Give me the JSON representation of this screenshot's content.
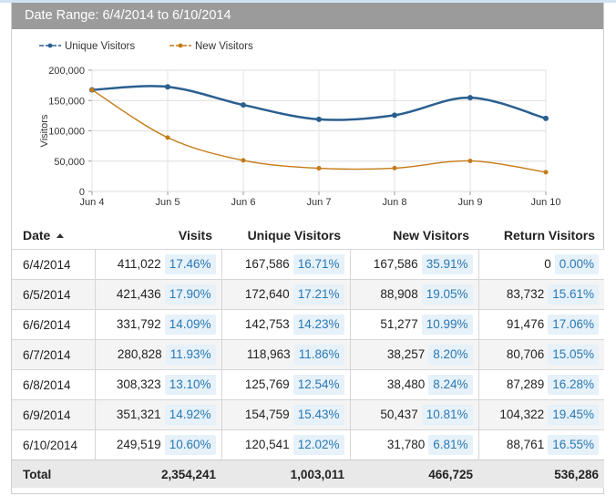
{
  "header": {
    "title": "Date Range: 6/4/2014 to 6/10/2014"
  },
  "chart_data": {
    "type": "line",
    "title": "",
    "xlabel": "",
    "ylabel": "Visitors",
    "categories": [
      "Jun 4",
      "Jun 5",
      "Jun 6",
      "Jun 7",
      "Jun 8",
      "Jun 9",
      "Jun 10"
    ],
    "ylim": [
      0,
      200000
    ],
    "yticks": [
      0,
      50000,
      100000,
      150000,
      200000
    ],
    "ytick_labels": [
      "0",
      "50,000",
      "100,000",
      "150,000",
      "200,000"
    ],
    "grid": true,
    "legend_position": "top-left",
    "series": [
      {
        "name": "Unique Visitors",
        "color": "#2a5f8f",
        "smooth": true,
        "values": [
          167586,
          172640,
          142753,
          118963,
          125769,
          154759,
          120541
        ]
      },
      {
        "name": "New Visitors",
        "color": "#c57a16",
        "smooth": false,
        "values": [
          167586,
          88908,
          51277,
          38257,
          38480,
          50437,
          31780
        ]
      }
    ]
  },
  "table": {
    "columns": [
      {
        "label": "Date",
        "sorted": "ascending"
      },
      {
        "label": "Visits"
      },
      {
        "label": "Unique Visitors"
      },
      {
        "label": "New Visitors"
      },
      {
        "label": "Return Visitors"
      }
    ],
    "rows": [
      {
        "date": "6/4/2014",
        "visits": "411,022",
        "visits_pct": "17.46%",
        "unique": "167,586",
        "unique_pct": "16.71%",
        "new": "167,586",
        "new_pct": "35.91%",
        "return": "0",
        "return_pct": "0.00%"
      },
      {
        "date": "6/5/2014",
        "visits": "421,436",
        "visits_pct": "17.90%",
        "unique": "172,640",
        "unique_pct": "17.21%",
        "new": "88,908",
        "new_pct": "19.05%",
        "return": "83,732",
        "return_pct": "15.61%"
      },
      {
        "date": "6/6/2014",
        "visits": "331,792",
        "visits_pct": "14.09%",
        "unique": "142,753",
        "unique_pct": "14.23%",
        "new": "51,277",
        "new_pct": "10.99%",
        "return": "91,476",
        "return_pct": "17.06%"
      },
      {
        "date": "6/7/2014",
        "visits": "280,828",
        "visits_pct": "11.93%",
        "unique": "118,963",
        "unique_pct": "11.86%",
        "new": "38,257",
        "new_pct": "8.20%",
        "return": "80,706",
        "return_pct": "15.05%"
      },
      {
        "date": "6/8/2014",
        "visits": "308,323",
        "visits_pct": "13.10%",
        "unique": "125,769",
        "unique_pct": "12.54%",
        "new": "38,480",
        "new_pct": "8.24%",
        "return": "87,289",
        "return_pct": "16.28%"
      },
      {
        "date": "6/9/2014",
        "visits": "351,321",
        "visits_pct": "14.92%",
        "unique": "154,759",
        "unique_pct": "15.43%",
        "new": "50,437",
        "new_pct": "10.81%",
        "return": "104,322",
        "return_pct": "19.45%"
      },
      {
        "date": "6/10/2014",
        "visits": "249,519",
        "visits_pct": "10.60%",
        "unique": "120,541",
        "unique_pct": "12.02%",
        "new": "31,780",
        "new_pct": "6.81%",
        "return": "88,761",
        "return_pct": "16.55%"
      }
    ],
    "total": {
      "label": "Total",
      "visits": "2,354,241",
      "unique": "1,003,011",
      "new": "466,725",
      "return": "536,286"
    }
  }
}
